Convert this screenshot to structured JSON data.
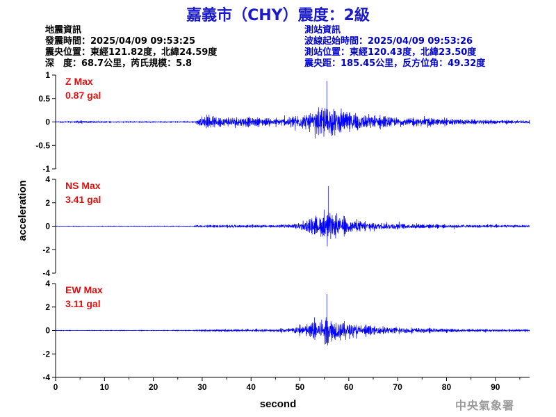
{
  "header": {
    "title": "嘉義市（CHY）震度：2級"
  },
  "event_info": {
    "heading": "地震資訊",
    "origin_time": "發震時間：2025/04/09 09:53:25",
    "epicenter": "震央位置：東經121.82度，北緯24.59度",
    "depth_magnitude": "深　度：68.7公里，芮氏規模：5.8"
  },
  "station_info": {
    "heading": "測站資訊",
    "wave_start": "波線起始時間：2025/04/09 09:53:26",
    "station_location": "測站位置：東經120.43度，北緯23.50度",
    "distance_azimuth": "震央距：185.45公里，反方位角：49.32度"
  },
  "footer": {
    "agency": "中央氣象署"
  },
  "chart_data": {
    "type": "line",
    "xlabel": "second",
    "ylabel": "acceleration",
    "xlim": [
      0,
      97
    ],
    "x_ticks": [
      0,
      10,
      20,
      30,
      40,
      50,
      60,
      70,
      80,
      90
    ],
    "trace_color": "#0000ff",
    "panels": [
      {
        "name": "Z",
        "max_label": "Z Max",
        "max_value": "0.87 gal",
        "ylim": [
          -1,
          1
        ],
        "y_ticks": [
          1,
          0.5,
          0,
          -0.5,
          -1
        ],
        "envelope": [
          [
            0,
            0.03
          ],
          [
            4,
            0.04
          ],
          [
            5,
            0.12
          ],
          [
            6,
            0.05
          ],
          [
            10,
            0.03
          ],
          [
            20,
            0.025
          ],
          [
            28.5,
            0.03
          ],
          [
            29.5,
            0.28
          ],
          [
            31,
            0.32
          ],
          [
            33,
            0.3
          ],
          [
            35,
            0.28
          ],
          [
            38,
            0.28
          ],
          [
            42,
            0.22
          ],
          [
            45,
            0.18
          ],
          [
            48,
            0.3
          ],
          [
            50,
            0.42
          ],
          [
            52,
            0.5
          ],
          [
            54,
            0.65
          ],
          [
            55.5,
            0.87
          ],
          [
            57,
            0.72
          ],
          [
            59,
            0.6
          ],
          [
            61,
            0.55
          ],
          [
            63,
            0.45
          ],
          [
            66,
            0.35
          ],
          [
            70,
            0.25
          ],
          [
            75,
            0.22
          ],
          [
            80,
            0.18
          ],
          [
            85,
            0.14
          ],
          [
            90,
            0.11
          ],
          [
            97,
            0.09
          ]
        ]
      },
      {
        "name": "NS",
        "max_label": "NS Max",
        "max_value": "3.41 gal",
        "ylim": [
          -4,
          4
        ],
        "y_ticks": [
          4,
          2,
          0,
          -2,
          -4
        ],
        "envelope": [
          [
            0,
            0.05
          ],
          [
            28,
            0.06
          ],
          [
            30,
            0.25
          ],
          [
            35,
            0.3
          ],
          [
            40,
            0.28
          ],
          [
            45,
            0.3
          ],
          [
            48,
            0.5
          ],
          [
            50,
            0.9
          ],
          [
            52,
            1.4
          ],
          [
            53.5,
            1.9
          ],
          [
            55,
            2.5
          ],
          [
            55.8,
            3.41
          ],
          [
            57,
            2.4
          ],
          [
            59,
            1.7
          ],
          [
            61,
            1.4
          ],
          [
            63,
            1.1
          ],
          [
            66,
            0.9
          ],
          [
            70,
            0.7
          ],
          [
            75,
            0.5
          ],
          [
            80,
            0.42
          ],
          [
            85,
            0.35
          ],
          [
            90,
            0.3
          ],
          [
            97,
            0.25
          ]
        ]
      },
      {
        "name": "EW",
        "max_label": "EW Max",
        "max_value": "3.11 gal",
        "ylim": [
          -4,
          4
        ],
        "y_ticks": [
          4,
          2,
          0,
          -2,
          -4
        ],
        "envelope": [
          [
            0,
            0.05
          ],
          [
            28,
            0.06
          ],
          [
            30,
            0.2
          ],
          [
            35,
            0.22
          ],
          [
            40,
            0.25
          ],
          [
            45,
            0.28
          ],
          [
            48,
            0.6
          ],
          [
            50,
            1.1
          ],
          [
            52,
            1.8
          ],
          [
            54,
            2.4
          ],
          [
            55.5,
            3.11
          ],
          [
            57,
            2.6
          ],
          [
            59,
            2.0
          ],
          [
            61,
            1.5
          ],
          [
            63,
            1.1
          ],
          [
            66,
            0.9
          ],
          [
            70,
            0.75
          ],
          [
            75,
            0.55
          ],
          [
            80,
            0.4
          ],
          [
            85,
            0.32
          ],
          [
            90,
            0.25
          ],
          [
            97,
            0.2
          ]
        ]
      }
    ]
  }
}
